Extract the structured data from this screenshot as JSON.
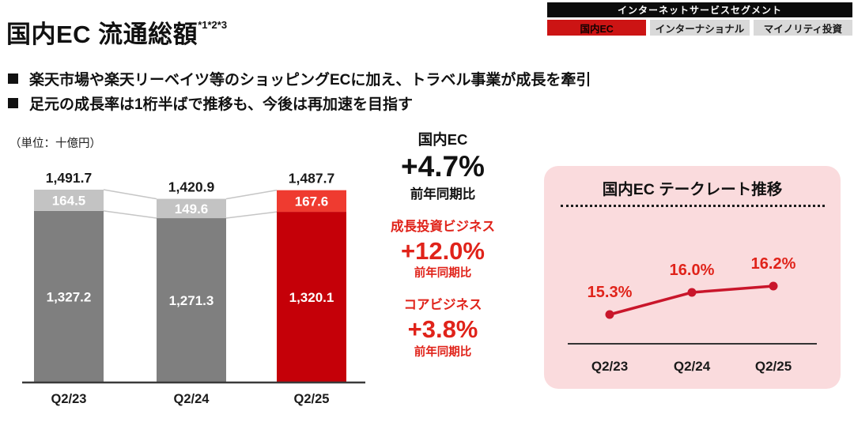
{
  "header": {
    "segment_bar": "インターネットサービスセグメント",
    "tabs": [
      {
        "label": "国内EC",
        "active": true
      },
      {
        "label": "インターナショナル",
        "active": false
      },
      {
        "label": "マイノリティ投資",
        "active": false
      }
    ]
  },
  "title": {
    "text": "国内EC 流通総額",
    "footnote": "*1*2*3"
  },
  "bullets": [
    "楽天市場や楽天リーベイツ等のショッピングECに加え、トラベル事業が成長を牽引",
    "足元の成長率は1桁半ばで推移も、今後は再加速を目指す"
  ],
  "unit_label": "（単位：十億円）",
  "stats": {
    "domestic": {
      "label": "国内EC",
      "value": "+4.7%",
      "sub": "前年同期比"
    },
    "growth": {
      "label": "成長投資ビジネス",
      "value": "+12.0%",
      "sub": "前年同期比"
    },
    "core": {
      "label": "コアビジネス",
      "value": "+3.8%",
      "sub": "前年同期比"
    }
  },
  "take_rate_panel": {
    "title": "国内EC テークレート推移"
  },
  "chart_data": [
    {
      "type": "bar",
      "stacked": true,
      "title": "国内EC 流通総額",
      "unit": "十億円",
      "categories": [
        "Q2/23",
        "Q2/24",
        "Q2/25"
      ],
      "series": [
        {
          "name": "コアビジネス",
          "values": [
            1327.2,
            1271.3,
            1320.1
          ]
        },
        {
          "name": "成長投資ビジネス",
          "values": [
            164.5,
            149.6,
            167.6
          ]
        }
      ],
      "totals": [
        1491.7,
        1420.9,
        1487.7
      ],
      "ylim": [
        0,
        1550
      ],
      "grid": false,
      "bottom_colors": [
        "#7f7f7f",
        "#7f7f7f",
        "#c50008"
      ],
      "top_colors": [
        "#c3c3c3",
        "#c3c3c3",
        "#ef3b30"
      ]
    },
    {
      "type": "line",
      "title": "国内EC テークレート推移",
      "categories": [
        "Q2/23",
        "Q2/24",
        "Q2/25"
      ],
      "values": [
        15.3,
        16.0,
        16.2
      ],
      "labels": [
        "15.3%",
        "16.0%",
        "16.2%"
      ],
      "ylim": [
        15.0,
        16.5
      ],
      "grid": false
    }
  ],
  "colors": {
    "accent_red": "#cc1414",
    "red_text": "#e0231a",
    "dark_red_bar": "#c50008",
    "bright_red_bar": "#ef3b30",
    "gray_bar": "#7f7f7f",
    "light_gray_bar": "#c3c3c3",
    "line_red": "#c9162b",
    "pink_card": "#fadbdd",
    "connector_gray": "#c6c6c6",
    "axis_dark": "#3a3a3a"
  }
}
